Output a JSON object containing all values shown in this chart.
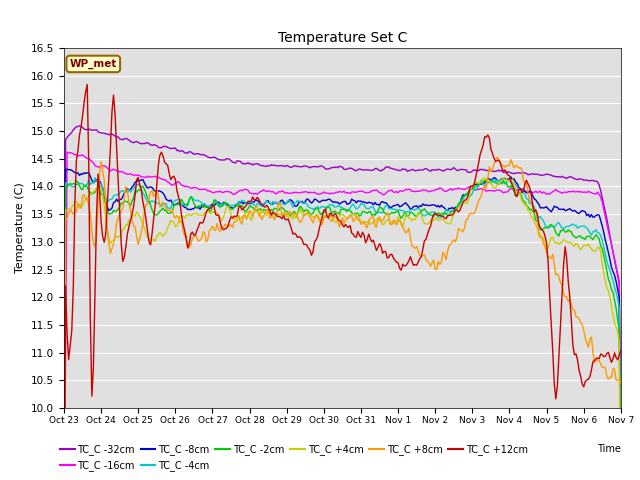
{
  "title": "Temperature Set C",
  "xlabel": "Time",
  "ylabel": "Temperature (C)",
  "ylim": [
    10.0,
    16.5
  ],
  "xlim": [
    0,
    360
  ],
  "background_color": "#e0e0e0",
  "wp_met_label": "WP_met",
  "wp_met_bg": "#ffffcc",
  "wp_met_border": "#996600",
  "series_colors": {
    "TC_C -32cm": "#9900cc",
    "TC_C -16cm": "#ff00ff",
    "TC_C -8cm": "#0000cc",
    "TC_C -4cm": "#00cccc",
    "TC_C -2cm": "#00cc00",
    "TC_C +4cm": "#cccc00",
    "TC_C +8cm": "#ff9900",
    "TC_C +12cm": "#cc0000"
  },
  "yticks": [
    10.0,
    10.5,
    11.0,
    11.5,
    12.0,
    12.5,
    13.0,
    13.5,
    14.0,
    14.5,
    15.0,
    15.5,
    16.0,
    16.5
  ],
  "xtick_labels": [
    "Oct 23",
    "Oct 24",
    "Oct 25",
    "Oct 26",
    "Oct 27",
    "Oct 28",
    "Oct 29",
    "Oct 30",
    "Oct 31",
    "Nov 1",
    "Nov 2",
    "Nov 3",
    "Nov 4",
    "Nov 5",
    "Nov 6",
    "Nov 7"
  ],
  "xtick_positions": [
    0,
    24,
    48,
    72,
    96,
    120,
    144,
    168,
    192,
    216,
    240,
    264,
    288,
    312,
    336,
    360
  ]
}
